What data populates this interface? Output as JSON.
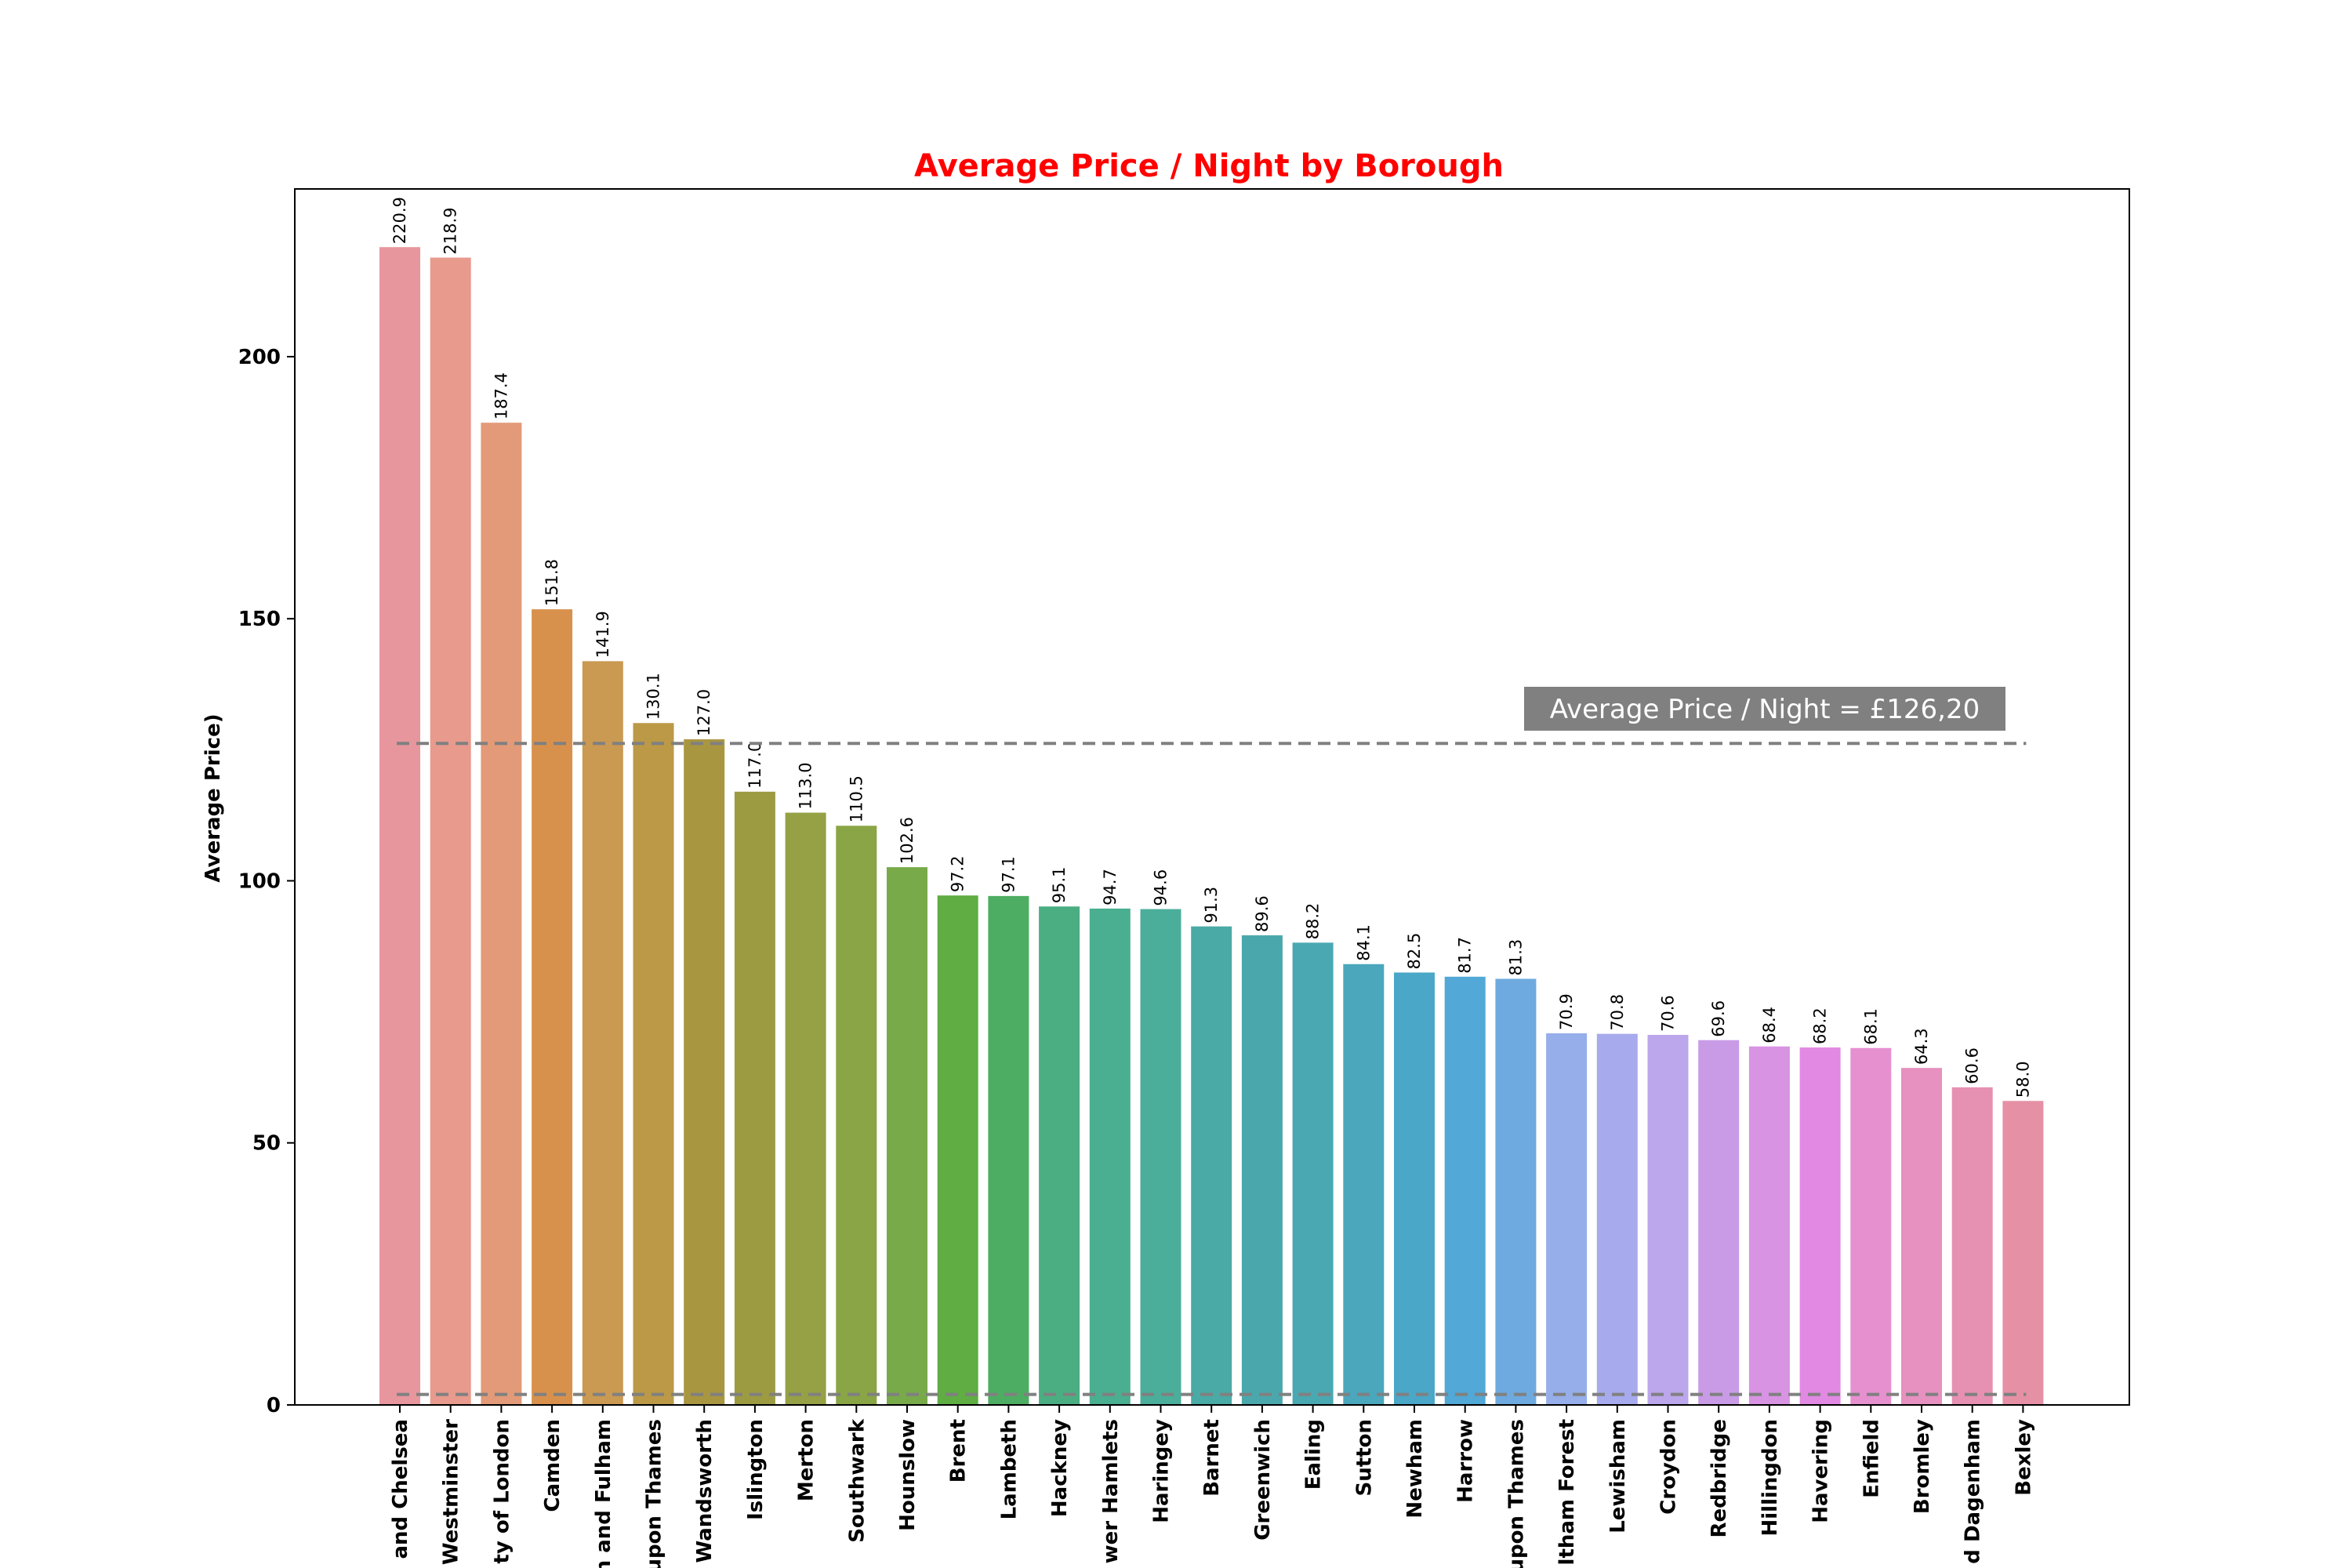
{
  "chart_data": {
    "type": "bar",
    "title": "Average Price / Night by Borough",
    "title_color": "#ff0000",
    "xlabel": "",
    "ylabel": "Average Price)",
    "ylim": [
      0,
      232
    ],
    "yticks": [
      0,
      50,
      100,
      150,
      200
    ],
    "grid": false,
    "categories": [
      "and Chelsea",
      "Westminster",
      "ty of London",
      "Camden",
      "h and Fulham",
      "upon Thames",
      "Wandsworth",
      "Islington",
      "Merton",
      "Southwark",
      "Hounslow",
      "Brent",
      "Lambeth",
      "Hackney",
      "wer Hamlets",
      "Haringey",
      "Barnet",
      "Greenwich",
      "Ealing",
      "Sutton",
      "Newham",
      "Harrow",
      "upon Thames",
      "ltham Forest",
      "Lewisham",
      "Croydon",
      "Redbridge",
      "Hillingdon",
      "Havering",
      "Enfield",
      "Bromley",
      "d Dagenham",
      "Bexley"
    ],
    "values": [
      220.9,
      218.9,
      187.4,
      151.8,
      141.9,
      130.1,
      127.0,
      117.0,
      113.0,
      110.5,
      102.6,
      97.2,
      97.1,
      95.1,
      94.7,
      94.6,
      91.3,
      89.6,
      88.2,
      84.1,
      82.5,
      81.7,
      81.3,
      70.9,
      70.8,
      70.6,
      69.6,
      68.4,
      68.2,
      68.1,
      64.3,
      60.6,
      58.0
    ],
    "data_labels": [
      "220.9",
      "218.9",
      "187.4",
      "151.8",
      "141.9",
      "130.1",
      "127.0",
      "117.0",
      "113.0",
      "110.5",
      "102.6",
      "97.2",
      "97.1",
      "95.1",
      "94.7",
      "94.6",
      "91.3",
      "89.6",
      "88.2",
      "84.1",
      "82.5",
      "81.7",
      "81.3",
      "70.9",
      "70.8",
      "70.6",
      "69.6",
      "68.4",
      "68.2",
      "68.1",
      "64.3",
      "60.6",
      "58.0"
    ],
    "colors": [
      "#e8969d",
      "#e89a8d",
      "#e39a78",
      "#d8914c",
      "#ca9952",
      "#bb9946",
      "#a99640",
      "#9d9b42",
      "#96a044",
      "#8aa545",
      "#78aa4a",
      "#5fad43",
      "#4dad62",
      "#4aae82",
      "#4aae90",
      "#4aae9b",
      "#4aaaa5",
      "#4aa8ac",
      "#4aa8b2",
      "#4aa7bc",
      "#4aa7c8",
      "#52a8d6",
      "#6eaadf",
      "#96aee9",
      "#a7aaec",
      "#bca6ec",
      "#c99be6",
      "#d893e3",
      "#e189e3",
      "#e690d0",
      "#e691c0",
      "#e690b2",
      "#e690a5"
    ],
    "reference_lines": [
      {
        "value": 126.2,
        "style": "dashed",
        "color": "#808080"
      },
      {
        "value": 2.0,
        "style": "dashed",
        "color": "#808080"
      }
    ],
    "annotation": {
      "text": "Average Price / Night = £126,20",
      "background": "#808080",
      "color": "#ffffff"
    }
  }
}
